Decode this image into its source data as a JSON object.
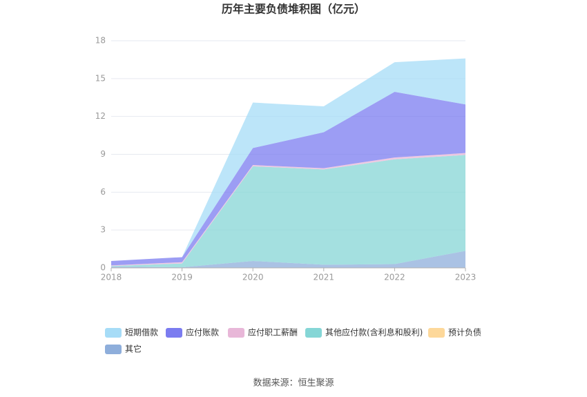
{
  "chart_data": {
    "type": "stacked_area",
    "title": "历年主要负债堆积图（亿元）",
    "source": "数据来源：恒生聚源",
    "categories": [
      "2018",
      "2019",
      "2020",
      "2021",
      "2022",
      "2023"
    ],
    "ylim": [
      0,
      18
    ],
    "yticks": [
      0,
      3,
      6,
      9,
      12,
      15,
      18
    ],
    "grid": true,
    "series": [
      {
        "name": "其它",
        "color": "#8eaedb",
        "values": [
          0.1,
          0.05,
          0.55,
          0.25,
          0.3,
          1.35
        ]
      },
      {
        "name": "预计负债",
        "color": "#fdd89a",
        "values": [
          0,
          0,
          0,
          0,
          0,
          0
        ]
      },
      {
        "name": "其他应付款(含利息和股利)",
        "color": "#85d6d6",
        "values": [
          0.05,
          0.3,
          7.5,
          7.55,
          8.3,
          7.6
        ]
      },
      {
        "name": "应付职工薪酬",
        "color": "#e8b7d8",
        "values": [
          0.05,
          0.1,
          0.1,
          0.1,
          0.15,
          0.15
        ]
      },
      {
        "name": "应付账款",
        "color": "#7b7cf0",
        "values": [
          0.35,
          0.4,
          1.35,
          2.85,
          5.2,
          3.85
        ]
      },
      {
        "name": "短期借款",
        "color": "#a6dcf7",
        "values": [
          0,
          0,
          3.6,
          2.05,
          2.35,
          3.65
        ]
      }
    ]
  }
}
